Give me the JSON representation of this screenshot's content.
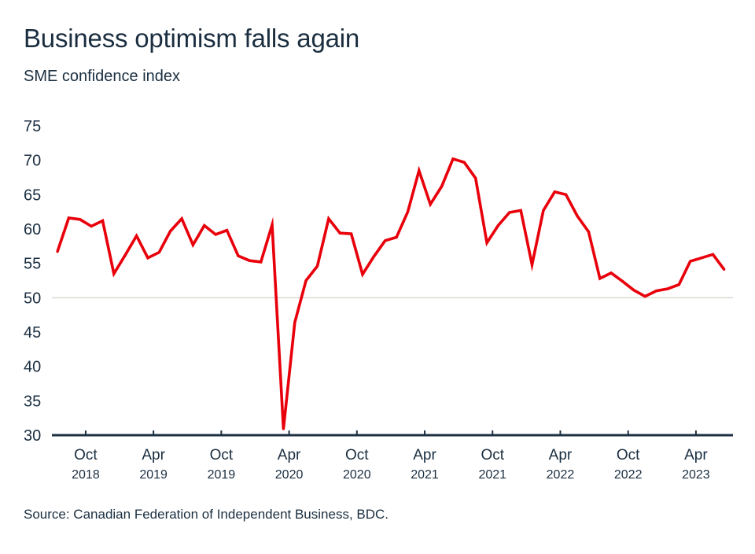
{
  "chart_data": {
    "type": "line",
    "title": "Business optimism falls again",
    "subtitle": "SME confidence index",
    "source": "Source: Canadian Federation of Independent Business, BDC.",
    "xlabel": "",
    "ylabel": "",
    "ylim": [
      30,
      75
    ],
    "yticks": [
      "75",
      "70",
      "65",
      "60",
      "55",
      "50",
      "45",
      "40",
      "35",
      "30"
    ],
    "ytick_values": [
      75,
      70,
      65,
      60,
      55,
      50,
      45,
      40,
      35,
      30
    ],
    "reference_line": 50,
    "grid": false,
    "legend": "none",
    "x_start": "2018-07",
    "x_end": "2023-06",
    "x_unit": "month",
    "xticks": [
      {
        "month": "Oct",
        "year": "2018",
        "index": 3
      },
      {
        "month": "Apr",
        "year": "2019",
        "index": 9
      },
      {
        "month": "Oct",
        "year": "2019",
        "index": 15
      },
      {
        "month": "Apr",
        "year": "2020",
        "index": 21
      },
      {
        "month": "Oct",
        "year": "2020",
        "index": 27
      },
      {
        "month": "Apr",
        "year": "2021",
        "index": 33
      },
      {
        "month": "Oct",
        "year": "2021",
        "index": 39
      },
      {
        "month": "Apr",
        "year": "2022",
        "index": 45
      },
      {
        "month": "Oct",
        "year": "2022",
        "index": 51
      },
      {
        "month": "Apr",
        "year": "2023",
        "index": 57
      }
    ],
    "series": [
      {
        "name": "SME confidence index",
        "color": "#e8000b",
        "values": [
          56.7,
          61.6,
          61.4,
          60.4,
          61.2,
          53.5,
          56.2,
          59.0,
          55.8,
          56.6,
          59.7,
          61.5,
          57.7,
          60.5,
          59.2,
          59.8,
          56.1,
          55.4,
          55.2,
          60.6,
          30.9,
          46.4,
          52.5,
          54.6,
          61.5,
          59.4,
          59.3,
          53.4,
          56.0,
          58.3,
          58.8,
          62.5,
          68.5,
          63.6,
          66.2,
          70.2,
          69.7,
          67.4,
          58.0,
          60.5,
          62.4,
          62.7,
          54.8,
          62.7,
          65.4,
          65.0,
          61.9,
          59.6,
          52.8,
          53.6,
          52.4,
          51.1,
          50.2,
          51.0,
          51.3,
          51.9,
          55.3,
          55.8,
          56.3,
          54.1
        ]
      }
    ]
  },
  "colors": {
    "text": "#1a2e40",
    "axis": "#1c3042",
    "reference_line": "#ddd6d0",
    "series": "#e8000b"
  }
}
